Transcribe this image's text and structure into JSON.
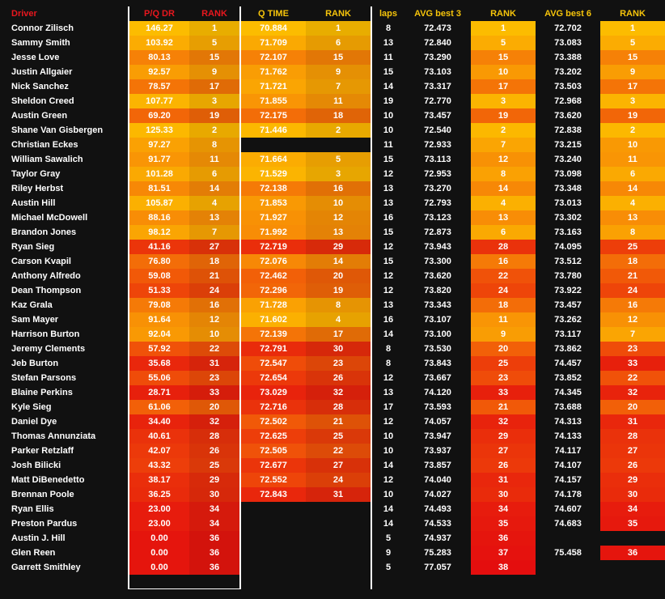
{
  "headers": {
    "driver": "Driver",
    "pq_dr": "P/Q DR",
    "rank1": "RANK",
    "q_time": "Q TIME",
    "rank2": "RANK",
    "laps": "laps",
    "avg3": "AVG best 3",
    "rank3": "RANK",
    "avg6": "AVG best 6",
    "rank4": "RANK"
  },
  "colors": {
    "background": "#111111",
    "header_red": "#e8171e",
    "header_yellow": "#f6c40a",
    "gold": "#fcb800",
    "red": "#e30d0d"
  },
  "rows": [
    {
      "driver": "Connor Zilisch",
      "pq": "146.27",
      "pqr": "1",
      "qt": "70.884",
      "qr": "1",
      "laps": "8",
      "a3": "72.473",
      "a3r": "1",
      "a6": "72.702",
      "a6r": "1"
    },
    {
      "driver": "Sammy Smith",
      "pq": "103.92",
      "pqr": "5",
      "qt": "71.709",
      "qr": "6",
      "laps": "13",
      "a3": "72.840",
      "a3r": "5",
      "a6": "73.083",
      "a6r": "5"
    },
    {
      "driver": "Jesse Love",
      "pq": "80.13",
      "pqr": "15",
      "qt": "72.107",
      "qr": "15",
      "laps": "11",
      "a3": "73.290",
      "a3r": "15",
      "a6": "73.388",
      "a6r": "15"
    },
    {
      "driver": "Justin Allgaier",
      "pq": "92.57",
      "pqr": "9",
      "qt": "71.762",
      "qr": "9",
      "laps": "15",
      "a3": "73.103",
      "a3r": "10",
      "a6": "73.202",
      "a6r": "9"
    },
    {
      "driver": "Nick Sanchez",
      "pq": "78.57",
      "pqr": "17",
      "qt": "71.721",
      "qr": "7",
      "laps": "14",
      "a3": "73.317",
      "a3r": "17",
      "a6": "73.503",
      "a6r": "17"
    },
    {
      "driver": "Sheldon Creed",
      "pq": "107.77",
      "pqr": "3",
      "qt": "71.855",
      "qr": "11",
      "laps": "19",
      "a3": "72.770",
      "a3r": "3",
      "a6": "72.968",
      "a6r": "3"
    },
    {
      "driver": "Austin Green",
      "pq": "69.20",
      "pqr": "19",
      "qt": "72.175",
      "qr": "18",
      "laps": "10",
      "a3": "73.457",
      "a3r": "19",
      "a6": "73.620",
      "a6r": "19"
    },
    {
      "driver": "Shane Van Gisbergen",
      "pq": "125.33",
      "pqr": "2",
      "qt": "71.446",
      "qr": "2",
      "laps": "10",
      "a3": "72.540",
      "a3r": "2",
      "a6": "72.838",
      "a6r": "2"
    },
    {
      "driver": "Christian Eckes",
      "pq": "97.27",
      "pqr": "8",
      "qt": "",
      "qr": "",
      "laps": "11",
      "a3": "72.933",
      "a3r": "7",
      "a6": "73.215",
      "a6r": "10"
    },
    {
      "driver": "William Sawalich",
      "pq": "91.77",
      "pqr": "11",
      "qt": "71.664",
      "qr": "5",
      "laps": "15",
      "a3": "73.113",
      "a3r": "12",
      "a6": "73.240",
      "a6r": "11"
    },
    {
      "driver": "Taylor Gray",
      "pq": "101.28",
      "pqr": "6",
      "qt": "71.529",
      "qr": "3",
      "laps": "12",
      "a3": "72.953",
      "a3r": "8",
      "a6": "73.098",
      "a6r": "6"
    },
    {
      "driver": "Riley Herbst",
      "pq": "81.51",
      "pqr": "14",
      "qt": "72.138",
      "qr": "16",
      "laps": "13",
      "a3": "73.270",
      "a3r": "14",
      "a6": "73.348",
      "a6r": "14"
    },
    {
      "driver": "Austin Hill",
      "pq": "105.87",
      "pqr": "4",
      "qt": "71.853",
      "qr": "10",
      "laps": "13",
      "a3": "72.793",
      "a3r": "4",
      "a6": "73.013",
      "a6r": "4"
    },
    {
      "driver": "Michael McDowell",
      "pq": "88.16",
      "pqr": "13",
      "qt": "71.927",
      "qr": "12",
      "laps": "16",
      "a3": "73.123",
      "a3r": "13",
      "a6": "73.302",
      "a6r": "13"
    },
    {
      "driver": "Brandon Jones",
      "pq": "98.12",
      "pqr": "7",
      "qt": "71.992",
      "qr": "13",
      "laps": "15",
      "a3": "72.873",
      "a3r": "6",
      "a6": "73.163",
      "a6r": "8"
    },
    {
      "driver": "Ryan Sieg",
      "pq": "41.16",
      "pqr": "27",
      "qt": "72.719",
      "qr": "29",
      "laps": "12",
      "a3": "73.943",
      "a3r": "28",
      "a6": "74.095",
      "a6r": "25"
    },
    {
      "driver": "Carson Kvapil",
      "pq": "76.80",
      "pqr": "18",
      "qt": "72.076",
      "qr": "14",
      "laps": "15",
      "a3": "73.300",
      "a3r": "16",
      "a6": "73.512",
      "a6r": "18"
    },
    {
      "driver": "Anthony Alfredo",
      "pq": "59.08",
      "pqr": "21",
      "qt": "72.462",
      "qr": "20",
      "laps": "12",
      "a3": "73.620",
      "a3r": "22",
      "a6": "73.780",
      "a6r": "21"
    },
    {
      "driver": "Dean Thompson",
      "pq": "51.33",
      "pqr": "24",
      "qt": "72.296",
      "qr": "19",
      "laps": "12",
      "a3": "73.820",
      "a3r": "24",
      "a6": "73.922",
      "a6r": "24"
    },
    {
      "driver": "Kaz Grala",
      "pq": "79.08",
      "pqr": "16",
      "qt": "71.728",
      "qr": "8",
      "laps": "13",
      "a3": "73.343",
      "a3r": "18",
      "a6": "73.457",
      "a6r": "16"
    },
    {
      "driver": "Sam Mayer",
      "pq": "91.64",
      "pqr": "12",
      "qt": "71.602",
      "qr": "4",
      "laps": "16",
      "a3": "73.107",
      "a3r": "11",
      "a6": "73.262",
      "a6r": "12"
    },
    {
      "driver": "Harrison Burton",
      "pq": "92.04",
      "pqr": "10",
      "qt": "72.139",
      "qr": "17",
      "laps": "14",
      "a3": "73.100",
      "a3r": "9",
      "a6": "73.117",
      "a6r": "7"
    },
    {
      "driver": "Jeremy Clements",
      "pq": "57.92",
      "pqr": "22",
      "qt": "72.791",
      "qr": "30",
      "laps": "8",
      "a3": "73.530",
      "a3r": "20",
      "a6": "73.862",
      "a6r": "23"
    },
    {
      "driver": "Jeb Burton",
      "pq": "35.68",
      "pqr": "31",
      "qt": "72.547",
      "qr": "23",
      "laps": "8",
      "a3": "73.843",
      "a3r": "25",
      "a6": "74.457",
      "a6r": "33"
    },
    {
      "driver": "Stefan Parsons",
      "pq": "55.06",
      "pqr": "23",
      "qt": "72.654",
      "qr": "26",
      "laps": "12",
      "a3": "73.667",
      "a3r": "23",
      "a6": "73.852",
      "a6r": "22"
    },
    {
      "driver": "Blaine Perkins",
      "pq": "28.71",
      "pqr": "33",
      "qt": "73.029",
      "qr": "32",
      "laps": "13",
      "a3": "74.120",
      "a3r": "33",
      "a6": "74.345",
      "a6r": "32"
    },
    {
      "driver": "Kyle Sieg",
      "pq": "61.06",
      "pqr": "20",
      "qt": "72.716",
      "qr": "28",
      "laps": "17",
      "a3": "73.593",
      "a3r": "21",
      "a6": "73.688",
      "a6r": "20"
    },
    {
      "driver": "Daniel Dye",
      "pq": "34.40",
      "pqr": "32",
      "qt": "72.502",
      "qr": "21",
      "laps": "12",
      "a3": "74.057",
      "a3r": "32",
      "a6": "74.313",
      "a6r": "31"
    },
    {
      "driver": "Thomas Annunziata",
      "pq": "40.61",
      "pqr": "28",
      "qt": "72.625",
      "qr": "25",
      "laps": "10",
      "a3": "73.947",
      "a3r": "29",
      "a6": "74.133",
      "a6r": "28"
    },
    {
      "driver": "Parker Retzlaff",
      "pq": "42.07",
      "pqr": "26",
      "qt": "72.505",
      "qr": "22",
      "laps": "10",
      "a3": "73.937",
      "a3r": "27",
      "a6": "74.117",
      "a6r": "27"
    },
    {
      "driver": "Josh Bilicki",
      "pq": "43.32",
      "pqr": "25",
      "qt": "72.677",
      "qr": "27",
      "laps": "14",
      "a3": "73.857",
      "a3r": "26",
      "a6": "74.107",
      "a6r": "26"
    },
    {
      "driver": "Matt DiBenedetto",
      "pq": "38.17",
      "pqr": "29",
      "qt": "72.552",
      "qr": "24",
      "laps": "12",
      "a3": "74.040",
      "a3r": "31",
      "a6": "74.157",
      "a6r": "29"
    },
    {
      "driver": "Brennan Poole",
      "pq": "36.25",
      "pqr": "30",
      "qt": "72.843",
      "qr": "31",
      "laps": "10",
      "a3": "74.027",
      "a3r": "30",
      "a6": "74.178",
      "a6r": "30"
    },
    {
      "driver": "Ryan Ellis",
      "pq": "23.00",
      "pqr": "34",
      "qt": "",
      "qr": "",
      "laps": "14",
      "a3": "74.493",
      "a3r": "34",
      "a6": "74.607",
      "a6r": "34"
    },
    {
      "driver": "Preston Pardus",
      "pq": "23.00",
      "pqr": "34",
      "qt": "",
      "qr": "",
      "laps": "14",
      "a3": "74.533",
      "a3r": "35",
      "a6": "74.683",
      "a6r": "35"
    },
    {
      "driver": "Austin J. Hill",
      "pq": "0.00",
      "pqr": "36",
      "qt": "",
      "qr": "",
      "laps": "5",
      "a3": "74.937",
      "a3r": "36",
      "a6": "",
      "a6r": ""
    },
    {
      "driver": "Glen Reen",
      "pq": "0.00",
      "pqr": "36",
      "qt": "",
      "qr": "",
      "laps": "9",
      "a3": "75.283",
      "a3r": "37",
      "a6": "75.458",
      "a6r": "36"
    },
    {
      "driver": "Garrett Smithley",
      "pq": "0.00",
      "pqr": "36",
      "qt": "",
      "qr": "",
      "laps": "5",
      "a3": "77.057",
      "a3r": "38",
      "a6": "",
      "a6r": ""
    }
  ]
}
